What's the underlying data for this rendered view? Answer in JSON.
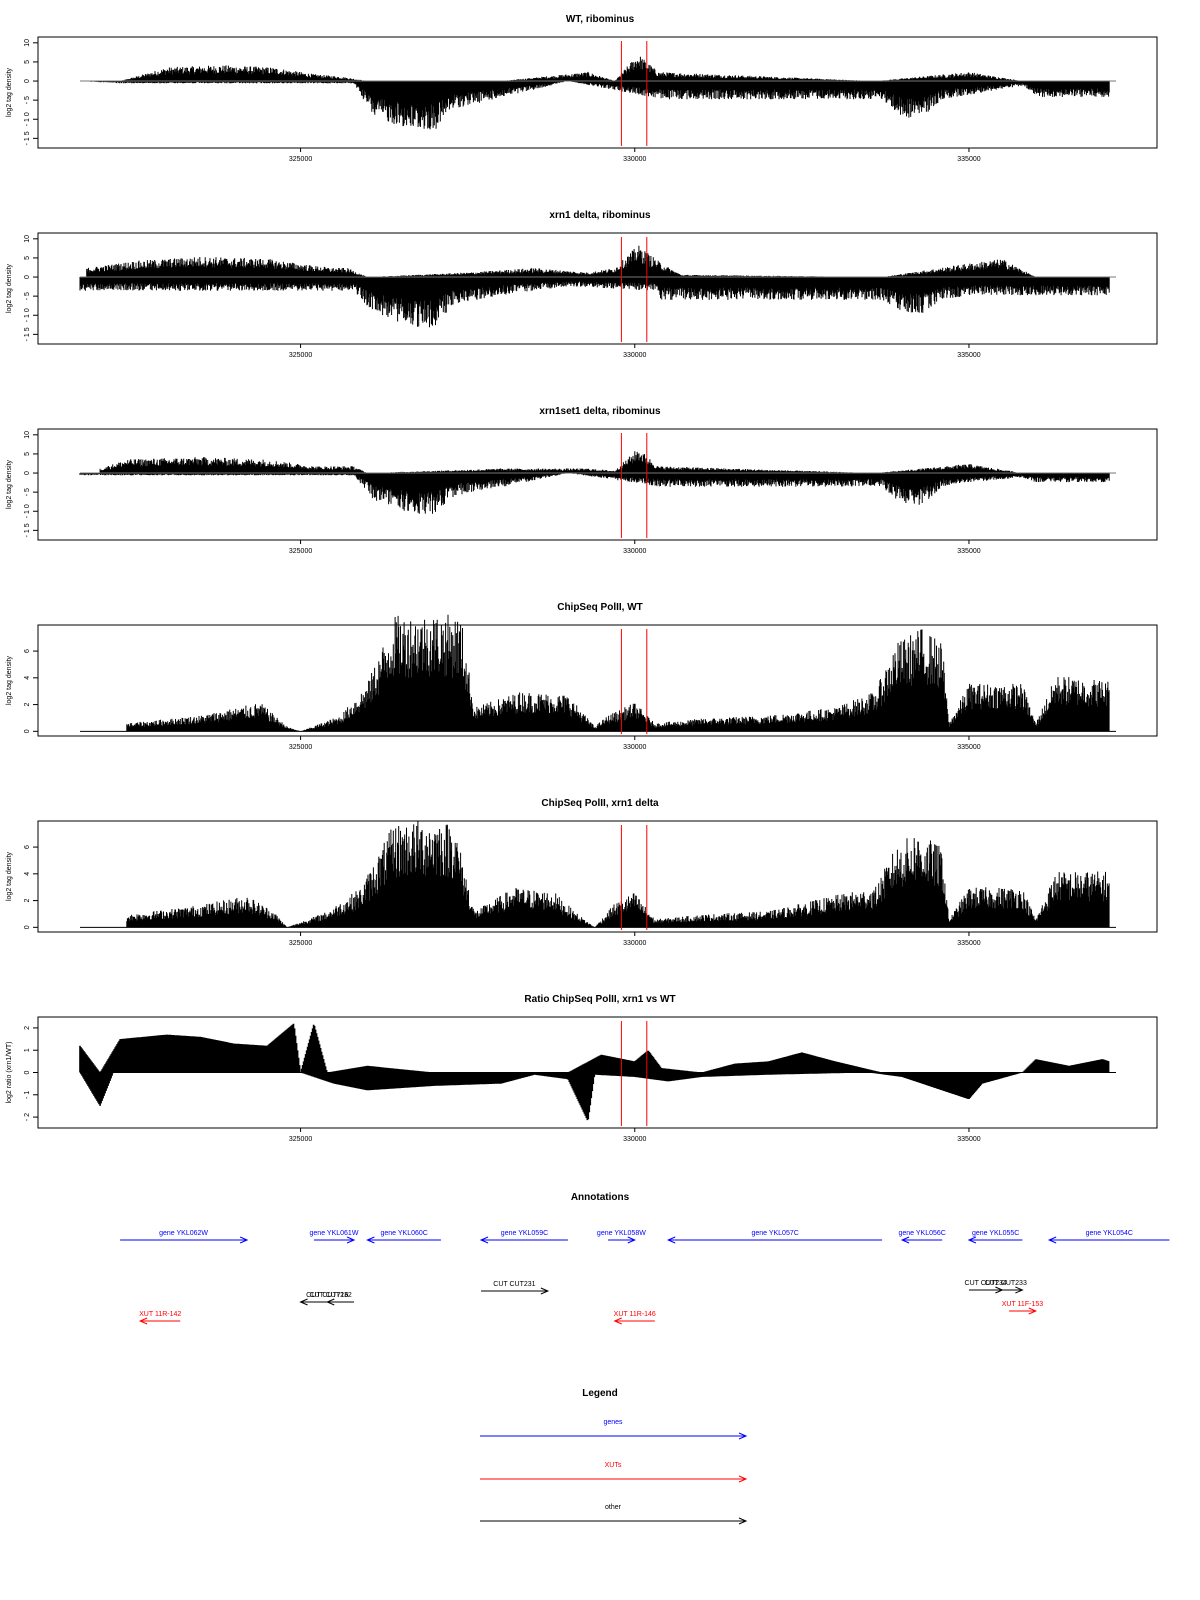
{
  "x_axis": {
    "ticks": [
      325000,
      330000,
      335000
    ],
    "tick_labels": [
      "325000",
      "330000",
      "335000"
    ],
    "xlim": [
      321700,
      337200
    ]
  },
  "marker_lines": {
    "color": "#ff0000",
    "positions": [
      329800,
      330180
    ]
  },
  "panels": [
    {
      "id": "wt-ribominus",
      "title": "WT, ribominus",
      "ylabel": "log2 tag density",
      "yticks": [
        10,
        5,
        0,
        -5,
        -10,
        -15
      ],
      "ytick_labels": [
        "10",
        "5",
        "0",
        "- 5",
        "- 1 0",
        "- 1 5"
      ],
      "ylim": [
        -17,
        11
      ]
    },
    {
      "id": "xrn1-ribominus",
      "title": "xrn1 delta, ribominus",
      "ylabel": "log2 tag density",
      "yticks": [
        10,
        5,
        0,
        -5,
        -10,
        -15
      ],
      "ytick_labels": [
        "10",
        "5",
        "0",
        "- 5",
        "- 1 0",
        "- 1 5"
      ],
      "ylim": [
        -17,
        11
      ]
    },
    {
      "id": "xrn1set1-ribominus",
      "title": "xrn1set1 delta, ribominus",
      "ylabel": "log2 tag density",
      "yticks": [
        10,
        5,
        0,
        -5,
        -10,
        -15
      ],
      "ytick_labels": [
        "10",
        "5",
        "0",
        "- 5",
        "- 1 0",
        "- 1 5"
      ],
      "ylim": [
        -17,
        11
      ]
    },
    {
      "id": "chipseq-wt",
      "title": "ChipSeq PolII, WT",
      "ylabel": "log2 tag density",
      "yticks": [
        0,
        2,
        4,
        6
      ],
      "ytick_labels": [
        "0",
        "2",
        "4",
        "6"
      ],
      "ylim": [
        -0.2,
        7.8
      ]
    },
    {
      "id": "chipseq-xrn1",
      "title": "ChipSeq PolII, xrn1 delta",
      "ylabel": "log2 tag density",
      "yticks": [
        0,
        2,
        4,
        6
      ],
      "ytick_labels": [
        "0",
        "2",
        "4",
        "6"
      ],
      "ylim": [
        -0.2,
        7.8
      ]
    },
    {
      "id": "ratio",
      "title": "Ratio ChipSeq PolII, xrn1 vs WT",
      "ylabel": "log2 ratio (xrn1/WT)",
      "yticks": [
        2,
        1,
        0,
        -1,
        -2
      ],
      "ytick_labels": [
        "2",
        "1",
        "0",
        "- 1",
        "- 2"
      ],
      "ylim": [
        -2.4,
        2.4
      ]
    }
  ],
  "chart_data": [
    {
      "type": "area",
      "title": "WT, ribominus",
      "ylabel": "log2 tag density",
      "xlim": [
        321700,
        337200
      ],
      "ylim": [
        -17,
        11
      ],
      "series": [
        {
          "sign": 1,
          "x": [
            322300,
            323000,
            323800,
            324600,
            325200,
            325600,
            326000,
            328000,
            329300,
            329700,
            330050,
            330350,
            333600,
            335000,
            335800
          ],
          "values": [
            0,
            3,
            3.5,
            3,
            1.5,
            1,
            0,
            0,
            2,
            0,
            6,
            2,
            0,
            2,
            0
          ]
        },
        {
          "sign": -1,
          "x": [
            321700,
            322300,
            325800,
            326100,
            326700,
            327000,
            327300,
            328200,
            329000,
            330400,
            333700,
            334000,
            334300,
            334600,
            335000,
            335800,
            336000,
            337100
          ],
          "values": [
            0,
            0.5,
            0.5,
            8,
            11,
            11,
            6,
            3,
            0,
            4,
            4,
            8,
            8,
            4,
            3,
            1,
            3.5,
            3.5
          ]
        }
      ]
    },
    {
      "type": "area",
      "title": "xrn1 delta, ribominus",
      "ylabel": "log2 tag density",
      "xlim": [
        321700,
        337200
      ],
      "ylim": [
        -17,
        11
      ],
      "series": [
        {
          "sign": 1,
          "x": [
            321800,
            322500,
            323500,
            324500,
            325200,
            325500,
            325700,
            326000,
            327500,
            328500,
            329300,
            329700,
            330050,
            330400,
            330700,
            333700,
            335000,
            335500,
            336000
          ],
          "values": [
            2,
            3.5,
            4.5,
            4,
            2.5,
            2,
            2,
            0,
            1,
            2,
            1,
            2,
            7,
            3,
            0.5,
            0,
            3,
            4,
            0
          ]
        },
        {
          "sign": -1,
          "x": [
            321700,
            323000,
            325500,
            325800,
            326100,
            326700,
            327000,
            327300,
            328200,
            329000,
            330300,
            330400,
            333700,
            334000,
            334300,
            334600,
            335000,
            335800,
            336000,
            337100
          ],
          "values": [
            3,
            3,
            3,
            3,
            8,
            11,
            11,
            6,
            3.5,
            2,
            3,
            5,
            5,
            8,
            8,
            5,
            4,
            4,
            4,
            4
          ]
        }
      ]
    },
    {
      "type": "area",
      "title": "xrn1set1 delta, ribominus",
      "ylabel": "log2 tag density",
      "xlim": [
        321700,
        337200
      ],
      "ylim": [
        -17,
        11
      ],
      "series": [
        {
          "sign": 1,
          "x": [
            322000,
            322400,
            323500,
            324500,
            325200,
            325800,
            326000,
            328000,
            329300,
            329700,
            330050,
            330350,
            333600,
            335000,
            335800
          ],
          "values": [
            1,
            3,
            3.5,
            3,
            1.5,
            1.5,
            0,
            1,
            1,
            0.5,
            5.5,
            1.5,
            0,
            2,
            0
          ]
        },
        {
          "sign": -1,
          "x": [
            321700,
            322300,
            325800,
            326100,
            326700,
            327000,
            327300,
            328200,
            329000,
            330400,
            333700,
            334000,
            334300,
            334600,
            335000,
            335800,
            336000,
            337100
          ],
          "values": [
            0.5,
            0.5,
            0.5,
            6,
            9,
            9,
            5,
            2.5,
            0,
            3,
            3,
            7,
            7,
            3,
            2,
            1,
            2,
            2
          ]
        }
      ]
    },
    {
      "type": "area",
      "title": "ChipSeq PolII, WT",
      "ylabel": "log2 tag density",
      "xlim": [
        321700,
        337200
      ],
      "ylim": [
        -0.2,
        7.8
      ],
      "series": [
        {
          "sign": 1,
          "x": [
            322400,
            323500,
            324400,
            324800,
            325000,
            325600,
            326000,
            326400,
            327000,
            327400,
            327600,
            328300,
            329000,
            329400,
            329600,
            330000,
            330300,
            331000,
            332000,
            333000,
            333600,
            333900,
            334300,
            334600,
            334700,
            335000,
            335800,
            336000,
            336300,
            337100
          ],
          "values": [
            0.5,
            1,
            1.8,
            0.3,
            0,
            1,
            3,
            7.2,
            7.4,
            7.2,
            1.5,
            2.5,
            2.3,
            0.3,
            1,
            1.8,
            0.5,
            0.8,
            1,
            1.5,
            2.5,
            5.5,
            6.5,
            5.5,
            0.5,
            3,
            3,
            0.5,
            3.5,
            3.2
          ]
        }
      ]
    },
    {
      "type": "area",
      "title": "ChipSeq PolII, xrn1 delta",
      "ylabel": "log2 tag density",
      "xlim": [
        321700,
        337200
      ],
      "ylim": [
        -0.2,
        7.8
      ],
      "series": [
        {
          "sign": 1,
          "x": [
            322400,
            323500,
            324200,
            324600,
            324800,
            325400,
            325900,
            326400,
            327000,
            327300,
            327600,
            328200,
            328800,
            329100,
            329400,
            329700,
            330000,
            330300,
            331000,
            332000,
            333000,
            333600,
            333900,
            334200,
            334600,
            334700,
            335000,
            335800,
            336000,
            336300,
            337100
          ],
          "values": [
            0.8,
            1.4,
            2,
            1,
            0,
            1,
            2.5,
            6.5,
            6.8,
            6.5,
            1,
            2.5,
            2.2,
            1,
            0,
            1.5,
            2.2,
            0.5,
            0.8,
            1,
            2,
            2.5,
            5,
            6,
            5,
            0.5,
            2.5,
            2.5,
            0.5,
            3.5,
            3.5
          ]
        }
      ]
    },
    {
      "type": "area",
      "title": "Ratio ChipSeq PolII, xrn1 vs WT",
      "ylabel": "log2 ratio (xrn1/WT)",
      "xlim": [
        321700,
        337200
      ],
      "ylim": [
        -2.4,
        2.4
      ],
      "series": [
        {
          "sign": 1,
          "x": [
            321700,
            322000,
            322300,
            323000,
            323500,
            324000,
            324500,
            324900,
            325000,
            325200,
            325400,
            326000,
            327000,
            328000,
            328500,
            329000,
            329500,
            330000,
            330200,
            330400,
            331000,
            331500,
            332000,
            332500,
            333000,
            333700,
            334000,
            335000,
            335800,
            336000,
            336500,
            337000,
            337100
          ],
          "values": [
            1.2,
            0,
            1.5,
            1.7,
            1.6,
            1.3,
            1.2,
            2.2,
            0,
            2.2,
            0,
            0.3,
            0,
            0,
            0,
            0,
            0.8,
            0.5,
            1,
            0.2,
            0,
            0.4,
            0.5,
            0.9,
            0.5,
            0,
            0,
            0,
            0,
            0.6,
            0.3,
            0.6,
            0.5
          ]
        },
        {
          "sign": -1,
          "x": [
            321700,
            322000,
            322200,
            325000,
            325500,
            326000,
            327000,
            328000,
            328500,
            329000,
            329300,
            329400,
            330000,
            330500,
            331000,
            332000,
            333500,
            334000,
            335000,
            335200,
            335800,
            336000,
            337100
          ],
          "values": [
            0,
            1.5,
            0,
            0,
            0.5,
            0.8,
            0.6,
            0.5,
            0.1,
            0.3,
            2.2,
            0.1,
            0.2,
            0.4,
            0.2,
            0.1,
            0,
            0.2,
            1.2,
            0.5,
            0,
            0,
            0
          ]
        }
      ]
    }
  ],
  "annotations": {
    "title": "Annotations",
    "colors": {
      "gene": "#0000ff",
      "xut": "#ff0000",
      "other": "#000000"
    },
    "items": [
      {
        "label": "gene YKL062W",
        "kind": "gene",
        "start": 322300,
        "end": 324200,
        "dir": "right"
      },
      {
        "label": "gene YKL061W",
        "kind": "gene",
        "start": 325200,
        "end": 325800,
        "dir": "right"
      },
      {
        "label": "gene YKL060C",
        "kind": "gene",
        "start": 326000,
        "end": 327100,
        "dir": "left"
      },
      {
        "label": "gene YKL059C",
        "kind": "gene",
        "start": 327700,
        "end": 329000,
        "dir": "left"
      },
      {
        "label": "gene YKL058W",
        "kind": "gene",
        "start": 329600,
        "end": 330000,
        "dir": "right"
      },
      {
        "label": "gene YKL057C",
        "kind": "gene",
        "start": 330500,
        "end": 333700,
        "dir": "left"
      },
      {
        "label": "gene YKL056C",
        "kind": "gene",
        "start": 334000,
        "end": 334600,
        "dir": "left"
      },
      {
        "label": "gene YKL055C",
        "kind": "gene",
        "start": 335000,
        "end": 335800,
        "dir": "left"
      },
      {
        "label": "gene YKL054C",
        "kind": "gene",
        "start": 336200,
        "end": 338000,
        "dir": "left"
      },
      {
        "label": "CUT CUT231",
        "kind": "other",
        "start": 327700,
        "end": 328700,
        "dir": "right"
      },
      {
        "label": "CUT CUT716",
        "kind": "other",
        "start": 325000,
        "end": 325800,
        "dir": "left"
      },
      {
        "label": "CUT CUT232",
        "kind": "other",
        "start": 325400,
        "end": 325500,
        "dir": "left"
      },
      {
        "label": "CUT CUT233",
        "kind": "other",
        "start": 335300,
        "end": 335800,
        "dir": "right"
      },
      {
        "label": "CUT CUT234",
        "kind": "other",
        "start": 335000,
        "end": 335500,
        "dir": "right"
      },
      {
        "label": "XUT 11R-142",
        "kind": "xut",
        "start": 322600,
        "end": 323200,
        "dir": "left"
      },
      {
        "label": "XUT 11R-146",
        "kind": "xut",
        "start": 329700,
        "end": 330300,
        "dir": "left"
      },
      {
        "label": "XUT 11F-153",
        "kind": "xut",
        "start": 335600,
        "end": 336000,
        "dir": "right"
      }
    ]
  },
  "legend": {
    "title": "Legend",
    "items": [
      {
        "label": "genes",
        "color": "#0000ff"
      },
      {
        "label": "XUTs",
        "color": "#ff0000"
      },
      {
        "label": "other",
        "color": "#000000"
      }
    ]
  }
}
